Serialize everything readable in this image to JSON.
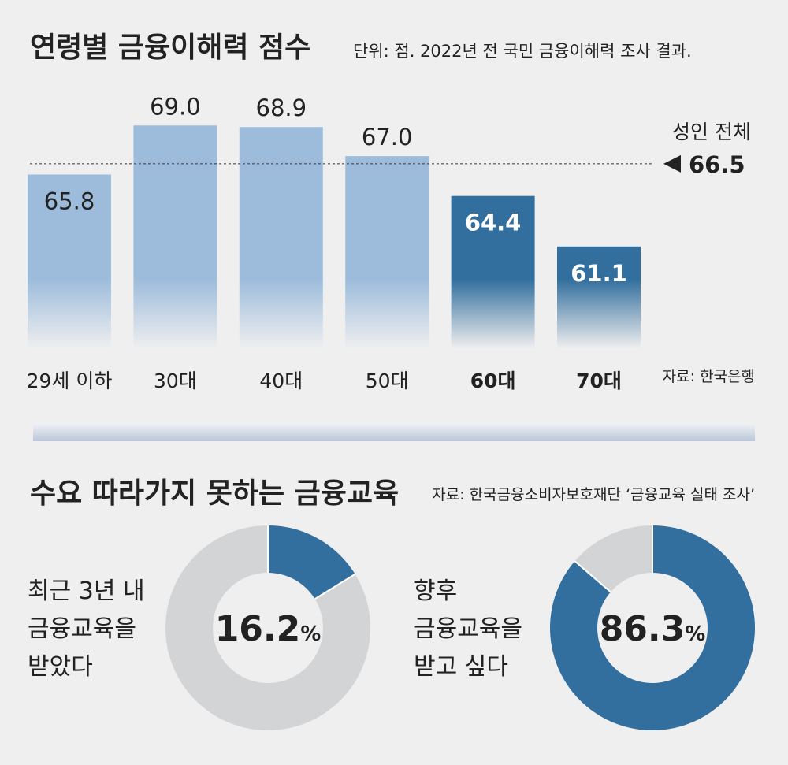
{
  "chart_data": [
    {
      "type": "bar",
      "title": "연령별 금융이해력 점수",
      "subtitle": "단위: 점. 2022년 전 국민 금융이해력 조사 결과.",
      "categories": [
        "29세 이하",
        "30대",
        "40대",
        "50대",
        "60대",
        "70대"
      ],
      "values": [
        65.8,
        69.0,
        68.9,
        67.0,
        64.4,
        61.1
      ],
      "value_labels": [
        "65.8",
        "69.0",
        "68.9",
        "67.0",
        "64.4",
        "61.1"
      ],
      "colors": [
        "#9dbcdb",
        "#9dbcdb",
        "#9dbcdb",
        "#9dbcdb",
        "#336f9e",
        "#336f9e"
      ],
      "reference": {
        "label": "성인 전체",
        "value": 66.5
      },
      "ylim": [
        54.3,
        70.3
      ],
      "source": "자료: 한국은행"
    },
    {
      "type": "donut",
      "label": [
        "최근 3년 내",
        "금융교육을",
        "받았다"
      ],
      "values": [
        16.2
      ],
      "unit": "%",
      "color": "#336f9e",
      "track_color": "#d3d4d6"
    },
    {
      "type": "donut",
      "label": [
        "향후",
        "금융교육을",
        "받고 싶다"
      ],
      "values": [
        86.3
      ],
      "unit": "%",
      "color": "#336f9e",
      "track_color": "#d3d4d6"
    }
  ],
  "section2": {
    "title": "수요 따라가지 못하는 금융교육",
    "source": "자료: 한국금융소비자보호재단 ‘금융교육 실태 조사’"
  }
}
